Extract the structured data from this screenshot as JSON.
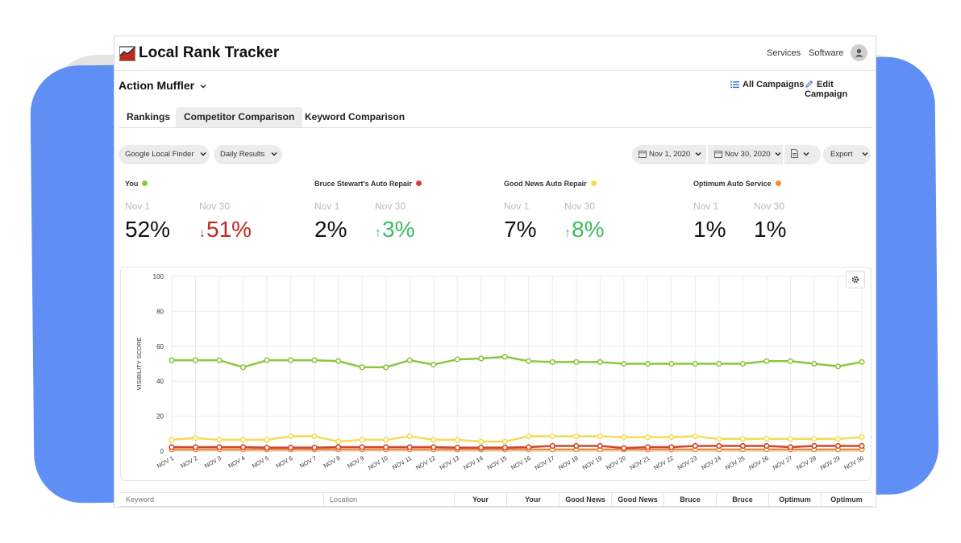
{
  "app": {
    "title": "Local Rank Tracker"
  },
  "header": {
    "services": "Services",
    "software": "Software"
  },
  "campaign": {
    "name": "Action Muffler",
    "all_campaigns": "All Campaigns",
    "edit_campaign": "Edit Campaign"
  },
  "tabs": [
    {
      "label": "Rankings",
      "active": false
    },
    {
      "label": "Competitor Comparison",
      "active": true
    },
    {
      "label": "Keyword Comparison",
      "active": false
    }
  ],
  "filters": {
    "source": "Google Local Finder",
    "frequency": "Daily Results",
    "start_date": "Nov 1, 2020",
    "end_date": "Nov 30, 2020",
    "export": "Export"
  },
  "metrics": [
    {
      "name": "You",
      "color": "#8cc63f",
      "start_label": "Nov 1",
      "end_label": "Nov 30",
      "start_value": "52%",
      "end_value": "51%",
      "trend": "down"
    },
    {
      "name": "Bruce Stewart's Auto Repair",
      "color": "#d0452b",
      "start_label": "Nov 1",
      "end_label": "Nov 30",
      "start_value": "2%",
      "end_value": "3%",
      "trend": "up"
    },
    {
      "name": "Good News Auto Repair",
      "color": "#f3dc55",
      "start_label": "Nov 1",
      "end_label": "Nov 30",
      "start_value": "7%",
      "end_value": "8%",
      "trend": "up"
    },
    {
      "name": "Optimum Auto Service",
      "color": "#f08c3c",
      "start_label": "Nov 1",
      "end_label": "Nov 30",
      "start_value": "1%",
      "end_value": "1%",
      "trend": "none"
    }
  ],
  "colors": {
    "up": "#3dbb5e",
    "down": "#c0281e"
  },
  "chart_data": {
    "type": "line",
    "ylabel": "VISIBILITY SCORE",
    "xlabel": "",
    "ylim": [
      0,
      100
    ],
    "yticks": [
      0,
      20,
      40,
      60,
      80,
      100
    ],
    "grid": true,
    "categories": [
      "NOV 1",
      "NOV 2",
      "NOV 3",
      "NOV 4",
      "NOV 5",
      "NOV 6",
      "NOV 7",
      "NOV 8",
      "NOV 9",
      "NOV 10",
      "NOV 11",
      "NOV 12",
      "NOV 13",
      "NOV 14",
      "NOV 15",
      "NOV 16",
      "NOV 17",
      "NOV 18",
      "NOV 19",
      "NOV 20",
      "NOV 21",
      "NOV 22",
      "NOV 23",
      "NOV 24",
      "NOV 25",
      "NOV 26",
      "NOV 27",
      "NOV 28",
      "NOV 29",
      "NOV 30"
    ],
    "series": [
      {
        "name": "Good News Auto Repair",
        "color": "#f3dc55",
        "values": [
          6.5,
          7.5,
          6.5,
          6.5,
          6.5,
          8.5,
          8.5,
          5.5,
          6.5,
          6.5,
          8.5,
          6.5,
          6.5,
          5.5,
          5.5,
          8.5,
          8.5,
          8.5,
          8.5,
          8,
          8,
          8,
          8.5,
          7,
          7,
          7,
          7,
          7,
          7,
          8
        ]
      },
      {
        "name": "Optimum Auto Service",
        "color": "#f08c3c",
        "values": [
          1,
          1,
          1,
          1,
          1,
          1,
          1,
          1,
          1,
          1,
          1,
          1,
          1,
          1,
          1,
          1,
          1,
          1,
          1,
          1,
          1,
          1,
          1,
          1,
          1,
          1,
          1,
          1,
          1,
          1
        ]
      },
      {
        "name": "Bruce Stewart's Auto Repair",
        "color": "#d0452b",
        "values": [
          2.3,
          2.3,
          2.3,
          2.3,
          2,
          2,
          2,
          2.3,
          2.3,
          2.3,
          2.3,
          2.3,
          2,
          2,
          2,
          2.3,
          3,
          3,
          3,
          1.8,
          2.3,
          2.3,
          3,
          3,
          3,
          3,
          2.3,
          3,
          3,
          3
        ]
      },
      {
        "name": "You",
        "color": "#8cc63f",
        "values": [
          52,
          52,
          52,
          48,
          52,
          52,
          52,
          51.5,
          48,
          48,
          52,
          49.5,
          52.5,
          53,
          54,
          51.5,
          51,
          51,
          51,
          50,
          50,
          50,
          50,
          50,
          50,
          51.5,
          51.5,
          50,
          48.5,
          51
        ]
      }
    ]
  },
  "table": {
    "headers": [
      "Keyword",
      "Location",
      "Your",
      "Your",
      "Good News",
      "Good News",
      "Bruce",
      "Bruce",
      "Optimum",
      "Optimum"
    ]
  },
  "icons": [
    "logo-chart-icon",
    "chevron-down-icon",
    "list-icon",
    "pencil-icon",
    "calendar-icon",
    "document-icon",
    "gear-icon",
    "user-icon",
    "arrow-up-icon",
    "arrow-down-icon"
  ]
}
